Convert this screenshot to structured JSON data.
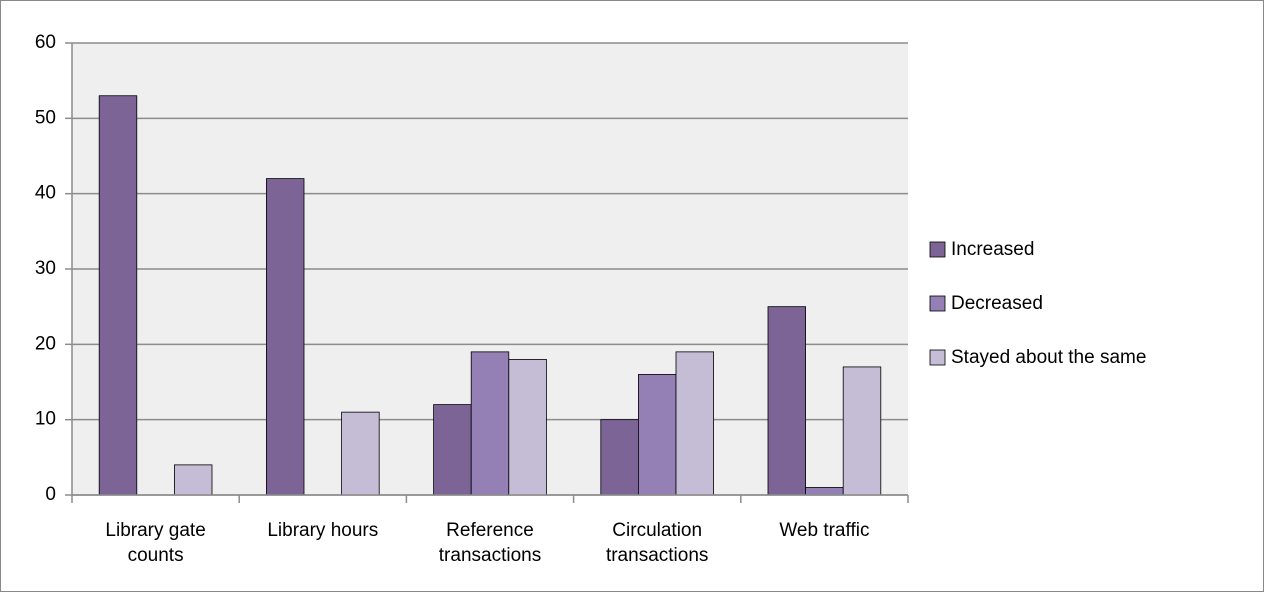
{
  "chart_data": {
    "type": "bar",
    "categories": [
      "Library gate counts",
      "Library hours",
      "Reference transactions",
      "Circulation transactions",
      "Web traffic"
    ],
    "series": [
      {
        "name": "Increased",
        "color": "#7d6496",
        "values": [
          53,
          42,
          12,
          10,
          25
        ]
      },
      {
        "name": "Decreased",
        "color": "#9580b5",
        "values": [
          0,
          0,
          19,
          16,
          1
        ]
      },
      {
        "name": "Stayed about the same",
        "color": "#c5bcd5",
        "values": [
          4,
          11,
          18,
          19,
          17
        ]
      }
    ],
    "ylim": [
      0,
      60
    ],
    "yticks": [
      0,
      10,
      20,
      30,
      40,
      50,
      60
    ],
    "grid": true,
    "legend": "right"
  }
}
